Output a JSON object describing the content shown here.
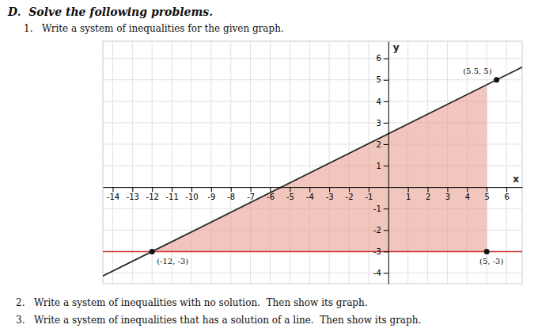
{
  "chart_data": {
    "type": "line",
    "title": "D.  Solve the following problems.",
    "annotations": [
      "1.   Write a system of inequalities for the given graph.",
      "2.   Write a system of inequalities with no solution.  Then show its graph.",
      "3.   Write a system of inequalities that has a solution of a line.  Then show its graph."
    ],
    "xlabel": "x",
    "ylabel": "y",
    "xlim": [
      -14.5,
      6.8
    ],
    "ylim": [
      -4.5,
      6.8
    ],
    "xticks": [
      -14,
      -13,
      -12,
      -11,
      -10,
      -9,
      -8,
      -7,
      -6,
      -5,
      -4,
      -3,
      -2,
      -1,
      1,
      2,
      3,
      4,
      5,
      6
    ],
    "yticks": [
      -4,
      -3,
      -2,
      -1,
      1,
      2,
      3,
      4,
      5,
      6
    ],
    "grid": true,
    "series": [
      {
        "type": "line",
        "x": [
          -12,
          5.5
        ],
        "values": [
          -3,
          5
        ],
        "color": "#2a2a2a"
      },
      {
        "type": "hline",
        "values": [
          -3
        ],
        "color": "#cc3333"
      },
      {
        "type": "area",
        "x": [
          -12,
          5
        ],
        "values": [
          -3,
          -3
        ],
        "color": "#e8a090"
      },
      {
        "type": "scatter",
        "x": [
          -12,
          5.5,
          5
        ],
        "values": [
          -3,
          5,
          -3
        ],
        "value_labels": [
          "(-12, -3)",
          "(5.5, 5)",
          "(5, -3)"
        ],
        "color": "#111111"
      }
    ]
  }
}
